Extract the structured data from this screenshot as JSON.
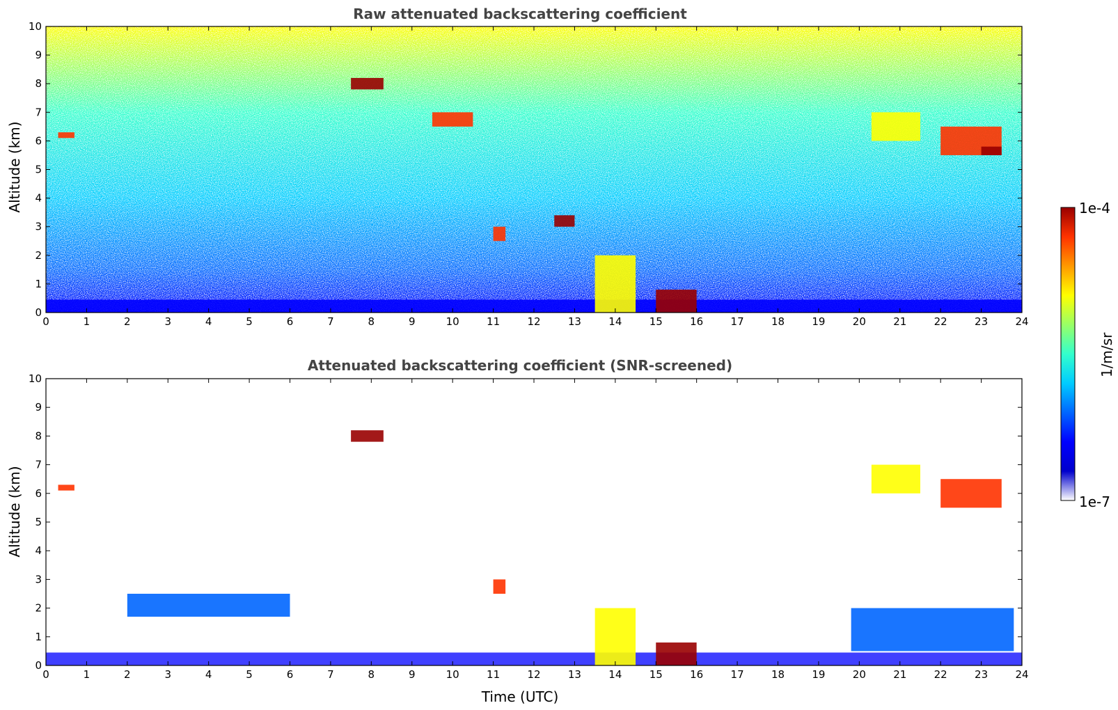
{
  "colormap": [
    "#ffffff",
    "#0000cc",
    "#0000ff",
    "#0066ff",
    "#00ccff",
    "#33ffcc",
    "#99ff66",
    "#ffff00",
    "#ff9900",
    "#ff3300",
    "#990000"
  ],
  "colorbar": {
    "max_label": "1e-4",
    "min_label": "1e-7",
    "unit_label": "1/m/sr"
  },
  "chart_data": [
    {
      "type": "heatmap",
      "title": "Raw attenuated backscattering coefficient",
      "xlabel": "",
      "ylabel": "Altitude (km)",
      "xlim": [
        0,
        24
      ],
      "ylim": [
        0,
        10
      ],
      "xticks": [
        0,
        1,
        2,
        3,
        4,
        5,
        6,
        7,
        8,
        9,
        10,
        11,
        12,
        13,
        14,
        15,
        16,
        17,
        18,
        19,
        20,
        21,
        22,
        23,
        24
      ],
      "yticks": [
        0,
        1,
        2,
        3,
        4,
        5,
        6,
        7,
        8,
        9,
        10
      ],
      "features": [
        {
          "t0": 0.3,
          "t1": 0.7,
          "z0": 6.1,
          "z1": 6.3,
          "level": 0.9
        },
        {
          "t0": 7.5,
          "t1": 8.3,
          "z0": 7.8,
          "z1": 8.2,
          "level": 0.95
        },
        {
          "t0": 9.5,
          "t1": 10.5,
          "z0": 6.5,
          "z1": 7.0,
          "level": 0.9
        },
        {
          "t0": 11.0,
          "t1": 11.3,
          "z0": 2.5,
          "z1": 3.0,
          "level": 0.9
        },
        {
          "t0": 12.5,
          "t1": 13.0,
          "z0": 3.0,
          "z1": 3.4,
          "level": 0.95
        },
        {
          "t0": 13.5,
          "t1": 14.5,
          "z0": 0.0,
          "z1": 2.0,
          "level": 0.7
        },
        {
          "t0": 15.0,
          "t1": 16.0,
          "z0": 0.0,
          "z1": 0.8,
          "level": 1.0
        },
        {
          "t0": 20.3,
          "t1": 21.5,
          "z0": 6.0,
          "z1": 7.0,
          "level": 0.65
        },
        {
          "t0": 22.0,
          "t1": 23.5,
          "z0": 5.5,
          "z1": 6.5,
          "level": 0.85
        },
        {
          "t0": 23.0,
          "t1": 23.5,
          "z0": 5.5,
          "z1": 5.8,
          "level": 0.95
        }
      ]
    },
    {
      "type": "heatmap",
      "title": "Attenuated backscattering coefficient (SNR-screened)",
      "xlabel": "Time (UTC)",
      "ylabel": "Altitude (km)",
      "xlim": [
        0,
        24
      ],
      "ylim": [
        0,
        10
      ],
      "xticks": [
        0,
        1,
        2,
        3,
        4,
        5,
        6,
        7,
        8,
        9,
        10,
        11,
        12,
        13,
        14,
        15,
        16,
        17,
        18,
        19,
        20,
        21,
        22,
        23,
        24
      ],
      "yticks": [
        0,
        1,
        2,
        3,
        4,
        5,
        6,
        7,
        8,
        9,
        10
      ],
      "features": [
        {
          "t0": 0.3,
          "t1": 0.7,
          "z0": 6.1,
          "z1": 6.3,
          "level": 0.9
        },
        {
          "t0": 2.0,
          "t1": 6.0,
          "z0": 1.7,
          "z1": 2.5,
          "level": 0.3
        },
        {
          "t0": 7.5,
          "t1": 8.3,
          "z0": 7.8,
          "z1": 8.2,
          "level": 0.95
        },
        {
          "t0": 11.0,
          "t1": 11.3,
          "z0": 2.5,
          "z1": 3.0,
          "level": 0.9
        },
        {
          "t0": 13.5,
          "t1": 14.5,
          "z0": 0.0,
          "z1": 2.0,
          "level": 0.7
        },
        {
          "t0": 15.0,
          "t1": 16.0,
          "z0": 0.0,
          "z1": 0.8,
          "level": 1.0
        },
        {
          "t0": 19.8,
          "t1": 23.8,
          "z0": 0.5,
          "z1": 2.0,
          "level": 0.25
        },
        {
          "t0": 20.3,
          "t1": 21.5,
          "z0": 6.0,
          "z1": 7.0,
          "level": 0.65
        },
        {
          "t0": 22.0,
          "t1": 23.5,
          "z0": 5.5,
          "z1": 6.5,
          "level": 0.85
        }
      ]
    }
  ]
}
